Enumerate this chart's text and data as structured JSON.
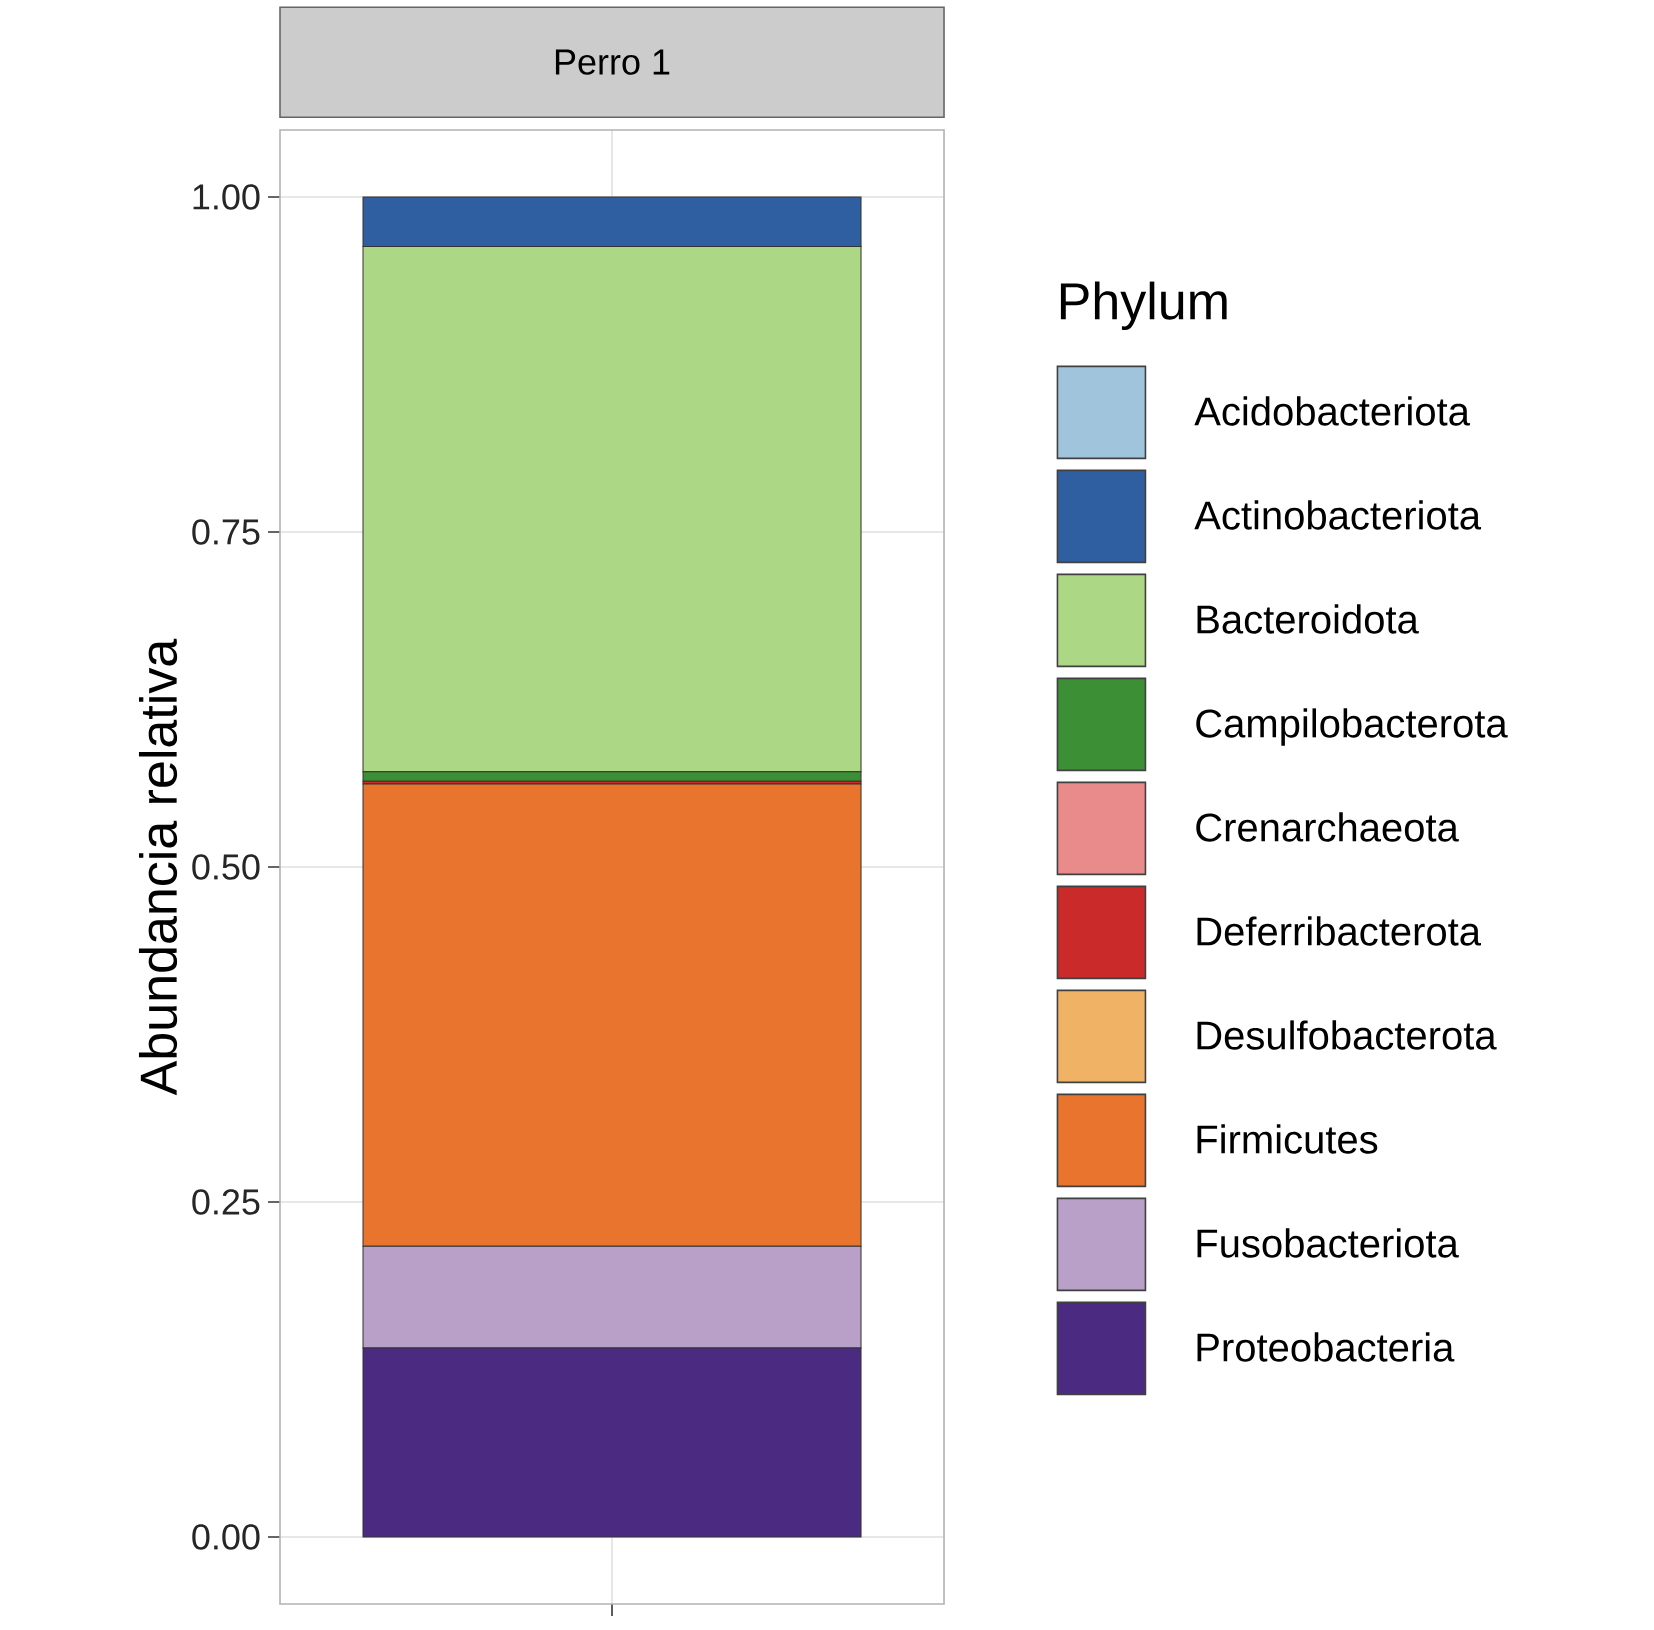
{
  "chart_data": {
    "type": "bar",
    "stacked": true,
    "title": "Perro 1",
    "ylabel": "Abundancia relativa",
    "legend_title": "Phylum",
    "categories": [
      null
    ],
    "series": [
      {
        "name": "Proteobacteria",
        "color": "#4b2a82",
        "values": [
          0.141
        ]
      },
      {
        "name": "Fusobacteriota",
        "color": "#b8a0c9",
        "values": [
          0.076
        ]
      },
      {
        "name": "Firmicutes",
        "color": "#e8742e",
        "values": [
          0.345
        ]
      },
      {
        "name": "Desulfobacterota",
        "color": "#f0b366",
        "values": [
          0
        ]
      },
      {
        "name": "Deferribacterota",
        "color": "#cb2a2a",
        "values": [
          0.002
        ]
      },
      {
        "name": "Crenarchaeota",
        "color": "#e98a8b",
        "values": [
          0
        ]
      },
      {
        "name": "Campilobacterota",
        "color": "#3d8f35",
        "values": [
          0.007
        ]
      },
      {
        "name": "Bacteroidota",
        "color": "#acd886",
        "values": [
          0.392
        ]
      },
      {
        "name": "Actinobacteriota",
        "color": "#2f5fa0",
        "values": [
          0.037
        ]
      },
      {
        "name": "Acidobacteriota",
        "color": "#9fc4dc",
        "values": [
          0
        ]
      }
    ],
    "ylim": [
      -0.05,
      1.05
    ],
    "yticks": [
      {
        "value": 0,
        "label": "0.00"
      },
      {
        "value": 0.25,
        "label": "0.25"
      },
      {
        "value": 0.5,
        "label": "0.50"
      },
      {
        "value": 0.75,
        "label": "0.75"
      },
      {
        "value": 1,
        "label": "1.00"
      }
    ],
    "grid": true,
    "legend": "right"
  }
}
